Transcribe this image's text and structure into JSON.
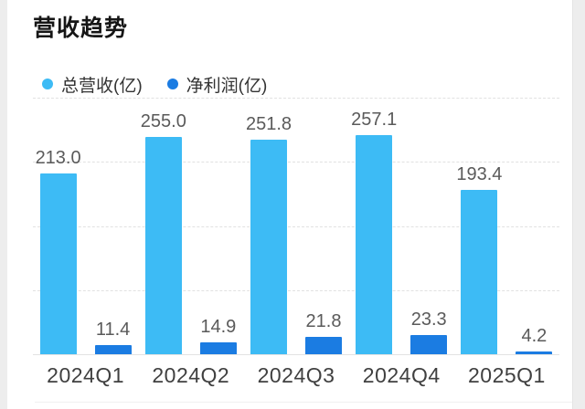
{
  "page": {
    "title": "营收趋势"
  },
  "chart_data": {
    "type": "bar",
    "title": "营收趋势",
    "categories": [
      "2024Q1",
      "2024Q2",
      "2024Q3",
      "2024Q4",
      "2025Q1"
    ],
    "series": [
      {
        "name": "总营收(亿)",
        "color": "#3dbbf5",
        "values": [
          213.0,
          255.0,
          251.8,
          257.1,
          193.4
        ],
        "labels": [
          "213.0",
          "255.0",
          "251.8",
          "257.1",
          "193.4"
        ]
      },
      {
        "name": "净利润(亿)",
        "color": "#1b7ce2",
        "values": [
          11.4,
          14.9,
          21.8,
          23.3,
          4.2
        ],
        "labels": [
          "11.4",
          "14.9",
          "21.8",
          "23.3",
          "4.2"
        ]
      }
    ],
    "xlabel": "",
    "ylabel": "",
    "ylim": [
      0,
      300
    ],
    "gridlines": [
      75,
      150,
      225,
      300
    ],
    "grid_style": "dashed",
    "legend_position": "top-left"
  }
}
